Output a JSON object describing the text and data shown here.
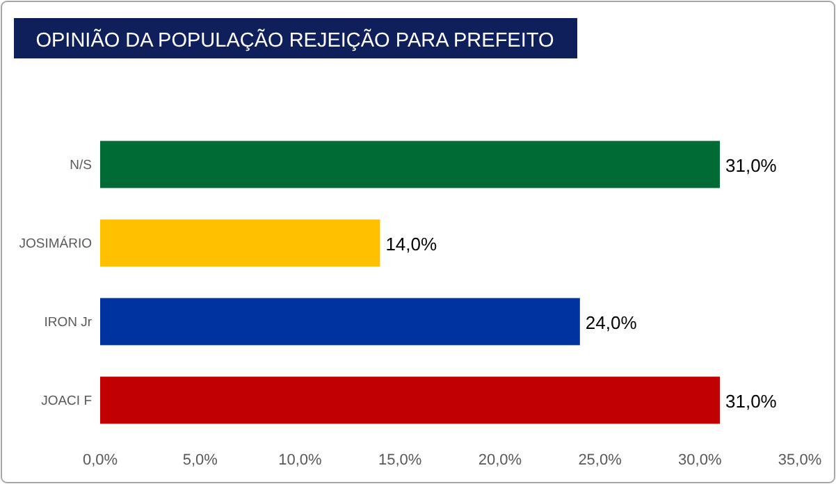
{
  "chart_data": {
    "type": "bar",
    "orientation": "horizontal",
    "title": "OPINIÃO DA POPULAÇÃO REJEIÇÃO PARA PREFEITO",
    "categories": [
      "N/S",
      "JOSIMÁRIO",
      "IRON Jr",
      "JOACI F"
    ],
    "values": [
      31,
      14,
      24,
      31
    ],
    "colors": [
      "#006b34",
      "#ffc000",
      "#0033a0",
      "#c00000"
    ],
    "value_labels": [
      "31,0%",
      "14,0%",
      "24,0%",
      "31,0%"
    ],
    "xlim": [
      0,
      35
    ],
    "xticks": [
      {
        "value": 0,
        "label": "0,0%"
      },
      {
        "value": 5,
        "label": "5,0%"
      },
      {
        "value": 10,
        "label": "10,0%"
      },
      {
        "value": 15,
        "label": "15,0%"
      },
      {
        "value": 20,
        "label": "20,0%"
      },
      {
        "value": 25,
        "label": "25,0%"
      },
      {
        "value": 30,
        "label": "30,0%"
      },
      {
        "value": 35,
        "label": "35,0%"
      }
    ],
    "grid": false
  }
}
